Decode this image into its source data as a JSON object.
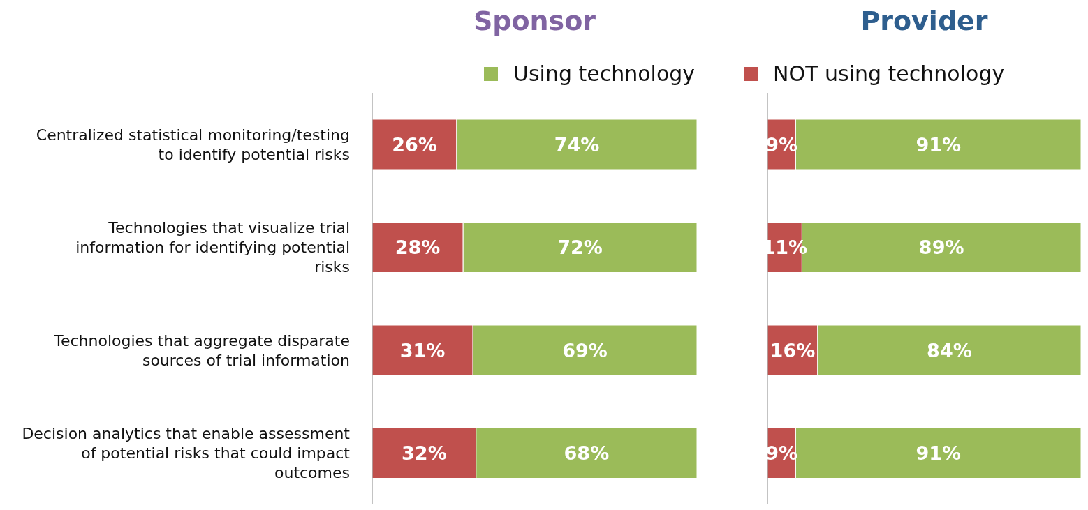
{
  "chart_data": [
    {
      "type": "bar",
      "title": "Sponsor",
      "orientation": "horizontal",
      "stacked": true,
      "legend": "top right",
      "tick_labels": "y",
      "xlim": [
        0,
        100
      ],
      "categories": [
        "Centralized statistical monitoring/testing to identify potential risks",
        "Technologies that visualize trial information for identifying potential risks",
        "Technologies that aggregate disparate sources of trial information",
        "Decision analytics that enable assessment of potential risks that could impact outcomes"
      ],
      "series": [
        {
          "name": "NOT using technology",
          "color": "#c0504d",
          "values": [
            26,
            28,
            31,
            32
          ],
          "value_labels": [
            "26%",
            "28%",
            "31%",
            "32%"
          ]
        },
        {
          "name": "Using technology",
          "color": "#9bbb59",
          "values": [
            74,
            72,
            69,
            68
          ],
          "value_labels": [
            "74%",
            "72%",
            "69%",
            "68%"
          ]
        }
      ]
    },
    {
      "type": "bar",
      "title": "Provider",
      "orientation": "horizontal",
      "stacked": true,
      "tick_labels": false,
      "xlim": [
        0,
        100
      ],
      "categories": [
        null,
        null,
        null,
        null
      ],
      "series": [
        {
          "color": "#c0504d",
          "values": [
            9,
            11,
            16,
            9
          ],
          "value_labels": [
            "9%",
            "11%",
            "16%",
            "9%"
          ]
        },
        {
          "color": "#9bbb59",
          "values": [
            91,
            89,
            84,
            91
          ],
          "value_labels": [
            "91%",
            "89%",
            "84%",
            "91%"
          ]
        }
      ]
    }
  ]
}
